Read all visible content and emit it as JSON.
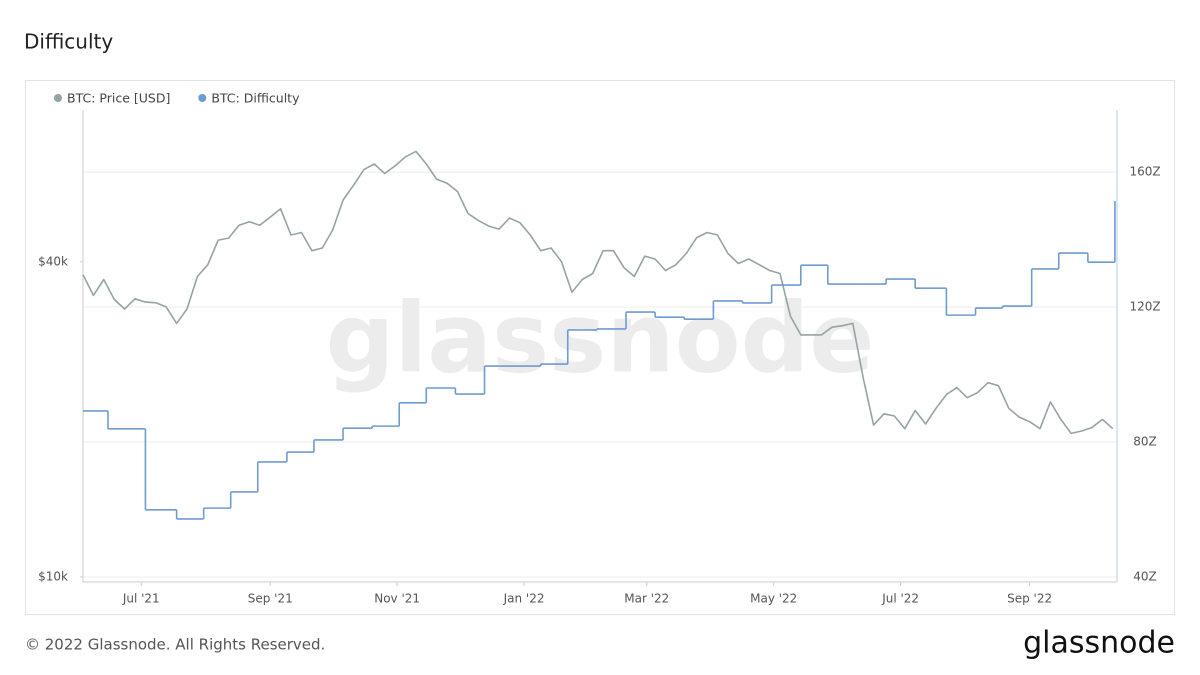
{
  "chart_data": {
    "type": "line",
    "title": "Difficulty",
    "watermark": "glassnode",
    "legend": "top-left",
    "xlim": [
      "2021-06-03",
      "2022-10-13"
    ],
    "xticks": [
      {
        "value": "2021-07-01",
        "label": "Jul '21"
      },
      {
        "value": "2021-09-01",
        "label": "Sep '21"
      },
      {
        "value": "2021-11-01",
        "label": "Nov '21"
      },
      {
        "value": "2022-01-01",
        "label": "Jan '22"
      },
      {
        "value": "2022-03-01",
        "label": "Mar '22"
      },
      {
        "value": "2022-05-01",
        "label": "May '22"
      },
      {
        "value": "2022-07-01",
        "label": "Jul '22"
      },
      {
        "value": "2022-09-01",
        "label": "Sep '22"
      }
    ],
    "ylim": [
      9780,
      78000
    ],
    "ylog": true,
    "yticks": [
      {
        "value": 10000,
        "label": "$10k"
      },
      {
        "value": 40000,
        "label": "$40k"
      }
    ],
    "y2lim": [
      38.5,
      178.4
    ],
    "y2ticks": [
      {
        "value": 40,
        "label": "40Z"
      },
      {
        "value": 80,
        "label": "80Z"
      },
      {
        "value": 120,
        "label": "120Z"
      },
      {
        "value": 160,
        "label": "160Z"
      }
    ],
    "grid": true,
    "series": [
      {
        "name": "BTC: Price [USD]",
        "color": "#95a3a6",
        "axis": "y",
        "step": false,
        "x": [
          "2021-06-03",
          "2021-06-08",
          "2021-06-13",
          "2021-06-18",
          "2021-06-23",
          "2021-06-28",
          "2021-07-03",
          "2021-07-08",
          "2021-07-13",
          "2021-07-18",
          "2021-07-23",
          "2021-07-28",
          "2021-08-02",
          "2021-08-07",
          "2021-08-12",
          "2021-08-17",
          "2021-08-22",
          "2021-08-27",
          "2021-09-01",
          "2021-09-06",
          "2021-09-11",
          "2021-09-16",
          "2021-09-21",
          "2021-09-26",
          "2021-10-01",
          "2021-10-06",
          "2021-10-11",
          "2021-10-16",
          "2021-10-21",
          "2021-10-26",
          "2021-10-31",
          "2021-11-05",
          "2021-11-10",
          "2021-11-15",
          "2021-11-20",
          "2021-11-25",
          "2021-11-30",
          "2021-12-05",
          "2021-12-10",
          "2021-12-15",
          "2021-12-20",
          "2021-12-25",
          "2021-12-30",
          "2022-01-04",
          "2022-01-09",
          "2022-01-14",
          "2022-01-19",
          "2022-01-24",
          "2022-01-29",
          "2022-02-03",
          "2022-02-08",
          "2022-02-13",
          "2022-02-18",
          "2022-02-23",
          "2022-02-28",
          "2022-03-05",
          "2022-03-10",
          "2022-03-15",
          "2022-03-20",
          "2022-03-25",
          "2022-03-30",
          "2022-04-04",
          "2022-04-09",
          "2022-04-14",
          "2022-04-19",
          "2022-04-24",
          "2022-04-29",
          "2022-05-04",
          "2022-05-09",
          "2022-05-14",
          "2022-05-19",
          "2022-05-24",
          "2022-05-29",
          "2022-06-03",
          "2022-06-08",
          "2022-06-13",
          "2022-06-18",
          "2022-06-23",
          "2022-06-28",
          "2022-07-03",
          "2022-07-08",
          "2022-07-13",
          "2022-07-18",
          "2022-07-23",
          "2022-07-28",
          "2022-08-02",
          "2022-08-07",
          "2022-08-12",
          "2022-08-17",
          "2022-08-22",
          "2022-08-27",
          "2022-09-01",
          "2022-09-06",
          "2022-09-11",
          "2022-09-16",
          "2022-09-21",
          "2022-09-26",
          "2022-10-01",
          "2022-10-06",
          "2022-10-11"
        ],
        "values": [
          37800,
          34500,
          37000,
          33900,
          32500,
          34000,
          33500,
          33400,
          32800,
          30500,
          32500,
          37500,
          39500,
          44000,
          44400,
          47000,
          47700,
          47000,
          48700,
          50500,
          45000,
          45500,
          42000,
          42500,
          46000,
          52500,
          56000,
          60000,
          61500,
          59000,
          61000,
          63500,
          65000,
          61500,
          57500,
          56500,
          54500,
          49500,
          48000,
          46800,
          46200,
          48500,
          47500,
          45000,
          42000,
          42500,
          40000,
          35000,
          37000,
          38000,
          42000,
          42000,
          39000,
          37500,
          41000,
          40500,
          38500,
          39500,
          41500,
          44500,
          45500,
          45000,
          41500,
          39700,
          40500,
          39500,
          38500,
          38000,
          31500,
          29000,
          29000,
          29000,
          30000,
          30200,
          30500,
          24000,
          19500,
          20500,
          20300,
          19200,
          20800,
          19600,
          21000,
          22300,
          23000,
          22000,
          22500,
          23500,
          23200,
          21000,
          20200,
          19800,
          19200,
          21600,
          20000,
          18800,
          19000,
          19300,
          20000,
          19200
        ]
      },
      {
        "name": "BTC: Difficulty",
        "color": "#6f9bd1",
        "axis": "y2",
        "step": true,
        "x": [
          "2021-06-03",
          "2021-06-15",
          "2021-07-03",
          "2021-07-18",
          "2021-07-31",
          "2021-08-13",
          "2021-08-26",
          "2021-09-09",
          "2021-09-22",
          "2021-10-06",
          "2021-10-20",
          "2021-11-02",
          "2021-11-15",
          "2021-11-29",
          "2021-12-13",
          "2021-12-26",
          "2022-01-09",
          "2022-01-22",
          "2022-02-05",
          "2022-02-19",
          "2022-03-05",
          "2022-03-19",
          "2022-04-02",
          "2022-04-16",
          "2022-04-30",
          "2022-05-14",
          "2022-05-27",
          "2022-06-10",
          "2022-06-24",
          "2022-07-08",
          "2022-07-23",
          "2022-08-06",
          "2022-08-19",
          "2022-09-02",
          "2022-09-15",
          "2022-09-29",
          "2022-10-12"
        ],
        "values": [
          89.2,
          83.9,
          59.9,
          57.2,
          60.4,
          65.2,
          74.1,
          77.0,
          80.6,
          84.1,
          84.7,
          91.6,
          96.0,
          94.2,
          102.5,
          102.5,
          103.1,
          113.2,
          113.5,
          118.5,
          117.0,
          116.4,
          121.8,
          121.2,
          126.5,
          132.4,
          126.8,
          126.8,
          128.3,
          125.6,
          117.6,
          119.7,
          120.3,
          131.3,
          136.0,
          133.3,
          151.4
        ]
      }
    ]
  },
  "footer": {
    "copyright": "© 2022 Glassnode. All Rights Reserved.",
    "logo": "glassnode"
  }
}
